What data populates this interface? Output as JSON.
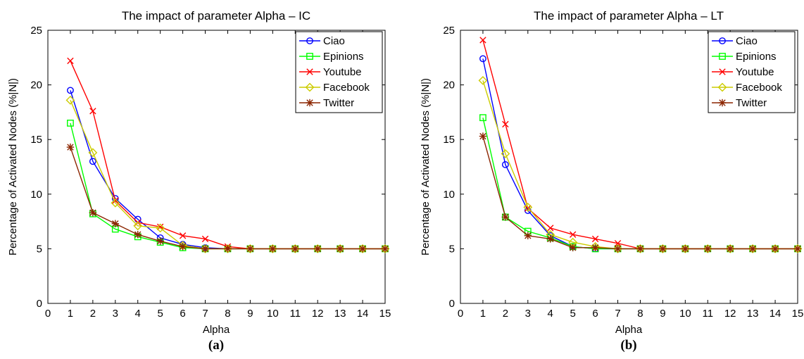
{
  "chart_data": [
    {
      "type": "line",
      "title": "The impact of parameter Alpha – IC",
      "xlabel": "Alpha",
      "ylabel": "Percentage of Activated Nodes (%|N|)",
      "panel_label": "(a)",
      "xlim": [
        0,
        15
      ],
      "ylim": [
        0,
        25
      ],
      "xticks": [
        "0",
        "1",
        "2",
        "3",
        "4",
        "5",
        "6",
        "7",
        "8",
        "9",
        "10",
        "11",
        "12",
        "13",
        "14",
        "15"
      ],
      "yticks": [
        "0",
        "5",
        "10",
        "15",
        "20",
        "25"
      ],
      "legend_position": "top-right",
      "grid": false,
      "x": [
        1,
        2,
        3,
        4,
        5,
        6,
        7,
        8,
        9,
        10,
        11,
        12,
        13,
        14,
        15
      ],
      "series": [
        {
          "name": "Ciao",
          "color": "#0000ff",
          "marker": "circle",
          "values": [
            19.5,
            13.0,
            9.6,
            7.7,
            6.0,
            5.4,
            5.1,
            5.0,
            5.0,
            5.0,
            5.0,
            5.0,
            5.0,
            5.0,
            5.0
          ]
        },
        {
          "name": "Epinions",
          "color": "#00ff00",
          "marker": "square",
          "values": [
            16.5,
            8.2,
            6.8,
            6.1,
            5.6,
            5.1,
            5.0,
            5.0,
            5.0,
            5.0,
            5.0,
            5.0,
            5.0,
            5.0,
            5.0
          ]
        },
        {
          "name": "Youtube",
          "color": "#ff0000",
          "marker": "x",
          "values": [
            22.2,
            17.6,
            9.4,
            7.4,
            7.0,
            6.2,
            5.9,
            5.2,
            5.0,
            5.0,
            5.0,
            5.0,
            5.0,
            5.0,
            5.0
          ]
        },
        {
          "name": "Facebook",
          "color": "#cccc00",
          "marker": "diamond",
          "values": [
            18.6,
            13.8,
            9.2,
            7.1,
            6.9,
            5.3,
            5.0,
            5.0,
            5.0,
            5.0,
            5.0,
            5.0,
            5.0,
            5.0,
            5.0
          ]
        },
        {
          "name": "Twitter",
          "color": "#8b2500",
          "marker": "star",
          "values": [
            14.3,
            8.3,
            7.3,
            6.3,
            5.7,
            5.2,
            5.0,
            5.0,
            5.0,
            5.0,
            5.0,
            5.0,
            5.0,
            5.0,
            5.0
          ]
        }
      ]
    },
    {
      "type": "line",
      "title": "The impact of parameter Alpha – LT",
      "xlabel": "Alpha",
      "ylabel": "Percentage of Activated Nodes (%|N|)",
      "panel_label": "(b)",
      "xlim": [
        0,
        15
      ],
      "ylim": [
        0,
        25
      ],
      "xticks": [
        "0",
        "1",
        "2",
        "3",
        "4",
        "5",
        "6",
        "7",
        "8",
        "9",
        "10",
        "11",
        "12",
        "13",
        "14",
        "15"
      ],
      "yticks": [
        "0",
        "5",
        "10",
        "15",
        "20",
        "25"
      ],
      "legend_position": "top-right",
      "grid": false,
      "x": [
        1,
        2,
        3,
        4,
        5,
        6,
        7,
        8,
        9,
        10,
        11,
        12,
        13,
        14,
        15
      ],
      "series": [
        {
          "name": "Ciao",
          "color": "#0000ff",
          "marker": "circle",
          "values": [
            22.4,
            12.7,
            8.5,
            6.2,
            5.2,
            5.0,
            5.0,
            5.0,
            5.0,
            5.0,
            5.0,
            5.0,
            5.0,
            5.0,
            5.0
          ]
        },
        {
          "name": "Epinions",
          "color": "#00ff00",
          "marker": "square",
          "values": [
            17.0,
            7.9,
            6.6,
            6.0,
            5.2,
            5.0,
            5.0,
            5.0,
            5.0,
            5.0,
            5.0,
            5.0,
            5.0,
            5.0,
            5.0
          ]
        },
        {
          "name": "Youtube",
          "color": "#ff0000",
          "marker": "x",
          "values": [
            24.1,
            16.4,
            8.7,
            6.9,
            6.3,
            5.9,
            5.5,
            5.0,
            5.0,
            5.0,
            5.0,
            5.0,
            5.0,
            5.0,
            5.0
          ]
        },
        {
          "name": "Facebook",
          "color": "#cccc00",
          "marker": "diamond",
          "values": [
            20.4,
            13.7,
            8.8,
            6.3,
            5.6,
            5.2,
            5.0,
            5.0,
            5.0,
            5.0,
            5.0,
            5.0,
            5.0,
            5.0,
            5.0
          ]
        },
        {
          "name": "Twitter",
          "color": "#8b2500",
          "marker": "star",
          "values": [
            15.3,
            7.9,
            6.2,
            5.9,
            5.1,
            5.1,
            5.0,
            5.0,
            5.0,
            5.0,
            5.0,
            5.0,
            5.0,
            5.0,
            5.0
          ]
        }
      ]
    }
  ]
}
